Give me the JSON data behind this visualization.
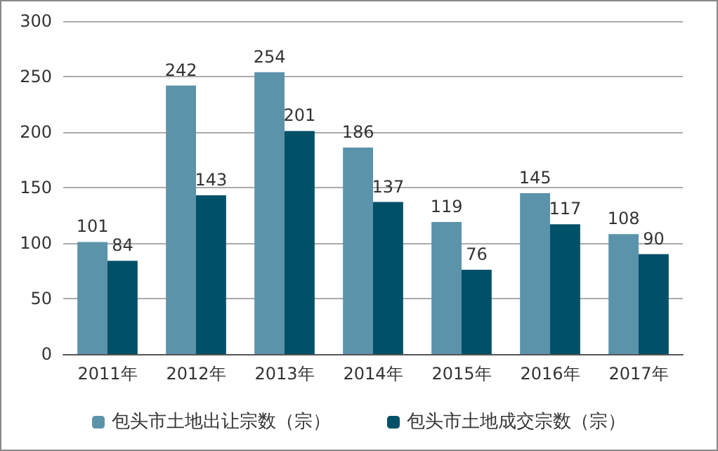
{
  "chart_data": {
    "type": "bar",
    "categories": [
      "2011年",
      "2012年",
      "2013年",
      "2014年",
      "2015年",
      "2016年",
      "2017年"
    ],
    "series": [
      {
        "name": "包头市土地出让宗数（宗）",
        "color": "#5b93aa",
        "values": [
          101,
          242,
          254,
          186,
          119,
          145,
          108
        ]
      },
      {
        "name": "包头市土地成交宗数（宗）",
        "color": "#005068",
        "values": [
          84,
          143,
          201,
          137,
          76,
          117,
          90
        ]
      }
    ],
    "ylim": [
      0,
      300
    ],
    "yticks": [
      0,
      50,
      100,
      150,
      200,
      250,
      300
    ],
    "grid": "y",
    "legend": "bottom",
    "data_labels": true
  }
}
